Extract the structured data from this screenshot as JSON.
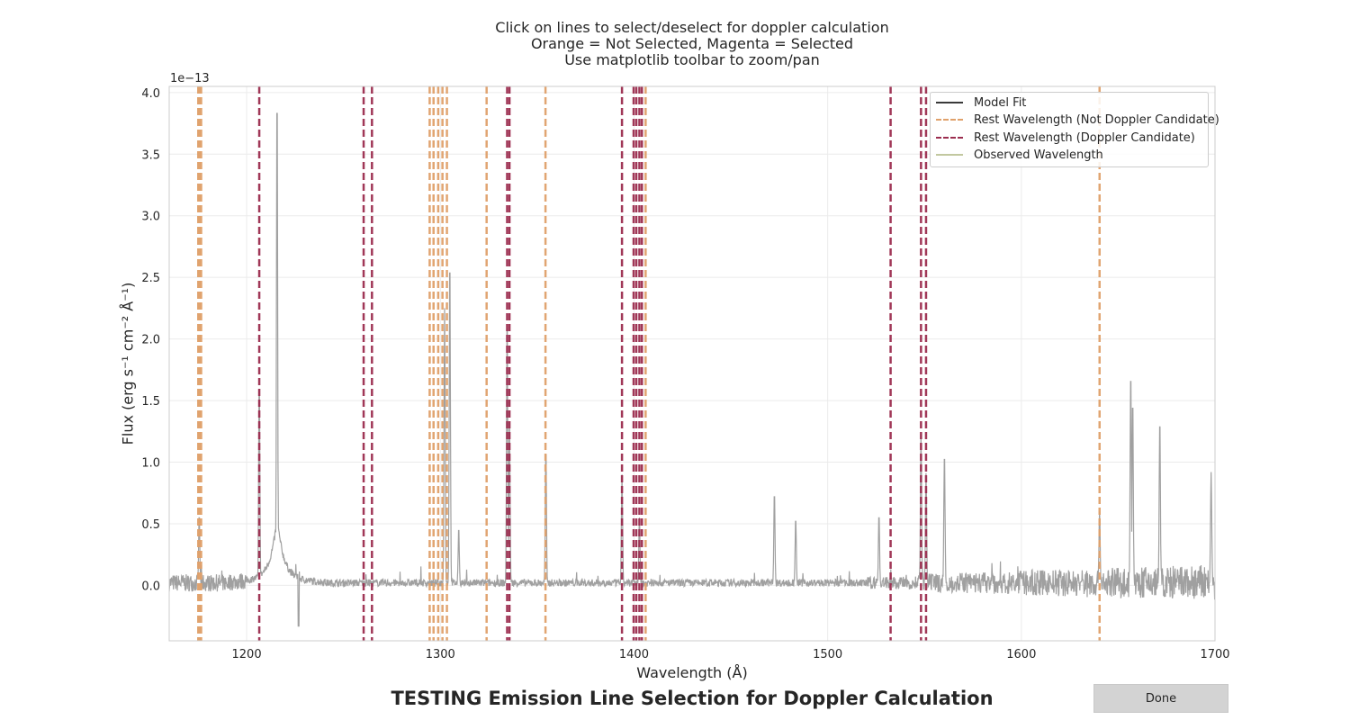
{
  "chart_data": {
    "type": "line",
    "title_lines": [
      "Click on lines to select/deselect for doppler calculation",
      "Orange = Not Selected, Magenta = Selected",
      "Use matplotlib toolbar to zoom/pan"
    ],
    "figure_title": "TESTING Emission Line Selection for Doppler Calculation",
    "xlabel": "Wavelength (Å)",
    "ylabel": "Flux (erg s⁻¹ cm⁻² Å⁻¹)",
    "y_scale_note": "1e−13",
    "xlim": [
      1160,
      1700
    ],
    "ylim": [
      -0.45,
      4.05
    ],
    "y_multiplier": 1e-13,
    "x_ticks": [
      1200,
      1300,
      1400,
      1500,
      1600,
      1700
    ],
    "y_ticks": [
      0.0,
      0.5,
      1.0,
      1.5,
      2.0,
      2.5,
      3.0,
      3.5,
      4.0
    ],
    "y_tick_labels": [
      "0.0",
      "0.5",
      "1.0",
      "1.5",
      "2.0",
      "2.5",
      "3.0",
      "3.5",
      "4.0"
    ],
    "grid": true,
    "legend_position": "top-right",
    "legend": [
      {
        "label": "Model Fit",
        "style": "solid",
        "color": "#3a3a3a"
      },
      {
        "label": "Rest Wavelength (Not Doppler Candidate)",
        "style": "dashed",
        "color": "#e0a16b"
      },
      {
        "label": "Rest Wavelength (Doppler Candidate)",
        "style": "dashed",
        "color": "#9b2d4f"
      },
      {
        "label": "Observed Wavelength",
        "style": "solid",
        "color": "#c2c8a0"
      }
    ],
    "colors": {
      "spectrum": "#a0a0a0",
      "model_fit": "#3a3a3a",
      "not_selected": "#e0a16b",
      "selected": "#9b2d4f"
    },
    "spectrum_peaks": [
      {
        "x": 1175.5,
        "y": 0.58
      },
      {
        "x": 1206.5,
        "y": 1.68
      },
      {
        "x": 1215.7,
        "y": 4.05
      },
      {
        "x": 1302.2,
        "y": 2.25
      },
      {
        "x": 1304.9,
        "y": 2.68
      },
      {
        "x": 1309.5,
        "y": 0.47
      },
      {
        "x": 1334.5,
        "y": 2.2
      },
      {
        "x": 1335.7,
        "y": 1.35
      },
      {
        "x": 1354.5,
        "y": 1.12
      },
      {
        "x": 1393.8,
        "y": 0.9
      },
      {
        "x": 1402.8,
        "y": 0.55
      },
      {
        "x": 1472.5,
        "y": 0.76
      },
      {
        "x": 1483.5,
        "y": 0.55
      },
      {
        "x": 1526.5,
        "y": 0.58
      },
      {
        "x": 1548.2,
        "y": 1.22
      },
      {
        "x": 1550.8,
        "y": 0.91
      },
      {
        "x": 1560.3,
        "y": 1.08
      },
      {
        "x": 1640.4,
        "y": 0.6
      },
      {
        "x": 1656.5,
        "y": 1.75
      },
      {
        "x": 1657.5,
        "y": 1.52
      },
      {
        "x": 1671.5,
        "y": 1.36
      },
      {
        "x": 1698.0,
        "y": 0.92
      }
    ],
    "rest_lines_not_selected": [
      1175.0,
      1175.7,
      1176.5,
      1294.5,
      1296.5,
      1298.9,
      1301.1,
      1303.4,
      1323.9,
      1354.3,
      1406.0,
      1640.4
    ],
    "rest_lines_selected": [
      1206.5,
      1260.4,
      1264.7,
      1334.5,
      1335.7,
      1393.8,
      1399.8,
      1401.2,
      1402.8,
      1404.1,
      1532.5,
      1548.2,
      1550.8
    ]
  },
  "button": {
    "done_label": "Done"
  }
}
